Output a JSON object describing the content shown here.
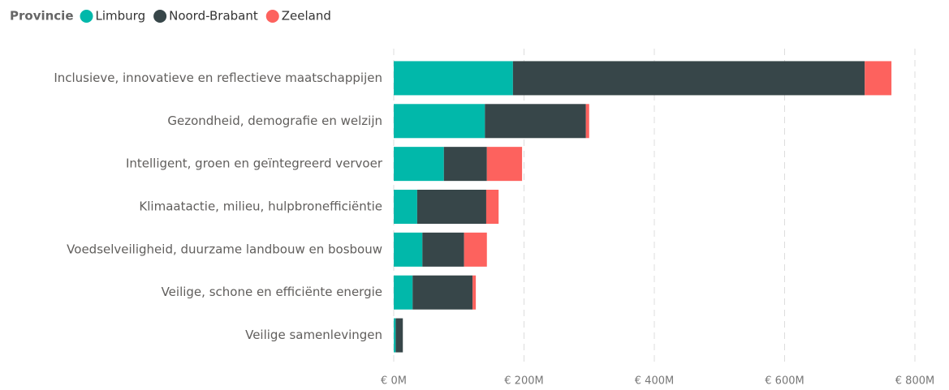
{
  "chart_data": {
    "type": "bar",
    "orientation": "horizontal",
    "stacked": true,
    "legend_title": "Provincie",
    "categories": [
      "Inclusieve, innovatieve en reflectieve maatschappijen",
      "Gezondheid, demografie en welzijn",
      "Intelligent, groen en geïntegreerd vervoer",
      "Klimaatactie, milieu, hulpbronefficiëntie",
      "Voedselveiligheid, duurzame landbouw en bosbouw",
      "Veilige, schone en efficiënte energie",
      "Veilige samenlevingen"
    ],
    "series": [
      {
        "name": "Limburg",
        "color": "#01B8AA",
        "values": [
          183,
          140,
          77,
          36,
          44,
          29,
          3
        ]
      },
      {
        "name": "Noord-Brabant",
        "color": "#374649",
        "values": [
          540,
          155,
          66,
          106,
          64,
          92,
          11
        ]
      },
      {
        "name": "Zeeland",
        "color": "#FD625E",
        "values": [
          41,
          5,
          54,
          19,
          35,
          5,
          0
        ]
      }
    ],
    "xlim": [
      0,
      800
    ],
    "xticks": [
      {
        "value": 0,
        "label": "€ 0M"
      },
      {
        "value": 200,
        "label": "€ 200M"
      },
      {
        "value": 400,
        "label": "€ 400M"
      },
      {
        "value": 600,
        "label": "€ 600M"
      },
      {
        "value": 800,
        "label": "€ 800M"
      }
    ],
    "grid": true
  }
}
